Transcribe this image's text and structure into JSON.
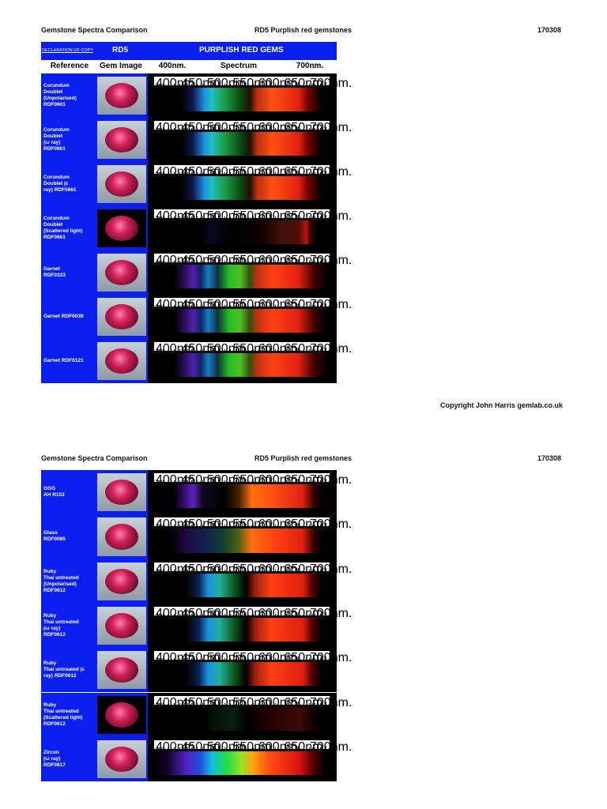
{
  "pages": [
    {
      "header": {
        "title": "Gemstone Spectra Comparison",
        "subtitle": "RD5 Purplish red gemstones",
        "code": "170308"
      },
      "table": {
        "declaration": "DECLARATION OF COPY",
        "ref": "RD5",
        "heading": "PURPLISH RED GEMS",
        "columns": [
          "Reference",
          "Gem Image",
          "400nm.",
          "Spectrum",
          "700nm."
        ],
        "rows": [
          "Corundum\nDoublet\n(Unpolarised)\nRDF0661",
          "Corundum\nDoublet\n(ω ray)\nRDF0661",
          "Corundum\nDoublet (ε\nray) RDF0661",
          "Corundum\nDoublet\n(Scattered light)\nRDF0661",
          "Garnet\nRDF0323",
          "Garnet RDF0039",
          "Garnet RDF0121"
        ]
      }
    },
    {
      "header": {
        "title": "Gemstone Spectra Comparison",
        "subtitle": "RD5 Purplish red gemstones",
        "code": "170308"
      },
      "table": {
        "rows": [
          "GGG\nAH R153",
          "Glass\nRDF0085",
          "Ruby\nThai untreated\n(Unpolarised)\nRDF0612",
          "Ruby\nThai untreated\n(ω ray)\nRDF0612",
          "Ruby\nThai untreated (ε\nray) RDF0612",
          "Ruby\nThai untreated\n(Scattered light)\nRDF0612",
          "Zircon\n(ω ray)\nRDF0817"
        ]
      }
    }
  ],
  "scale": [
    "400nm.",
    "450nm",
    "500nm.",
    "550nm",
    "600nm.",
    "650nm.",
    "700nm."
  ],
  "copyright": "Copyright  John Harris gemlab.co.uk"
}
